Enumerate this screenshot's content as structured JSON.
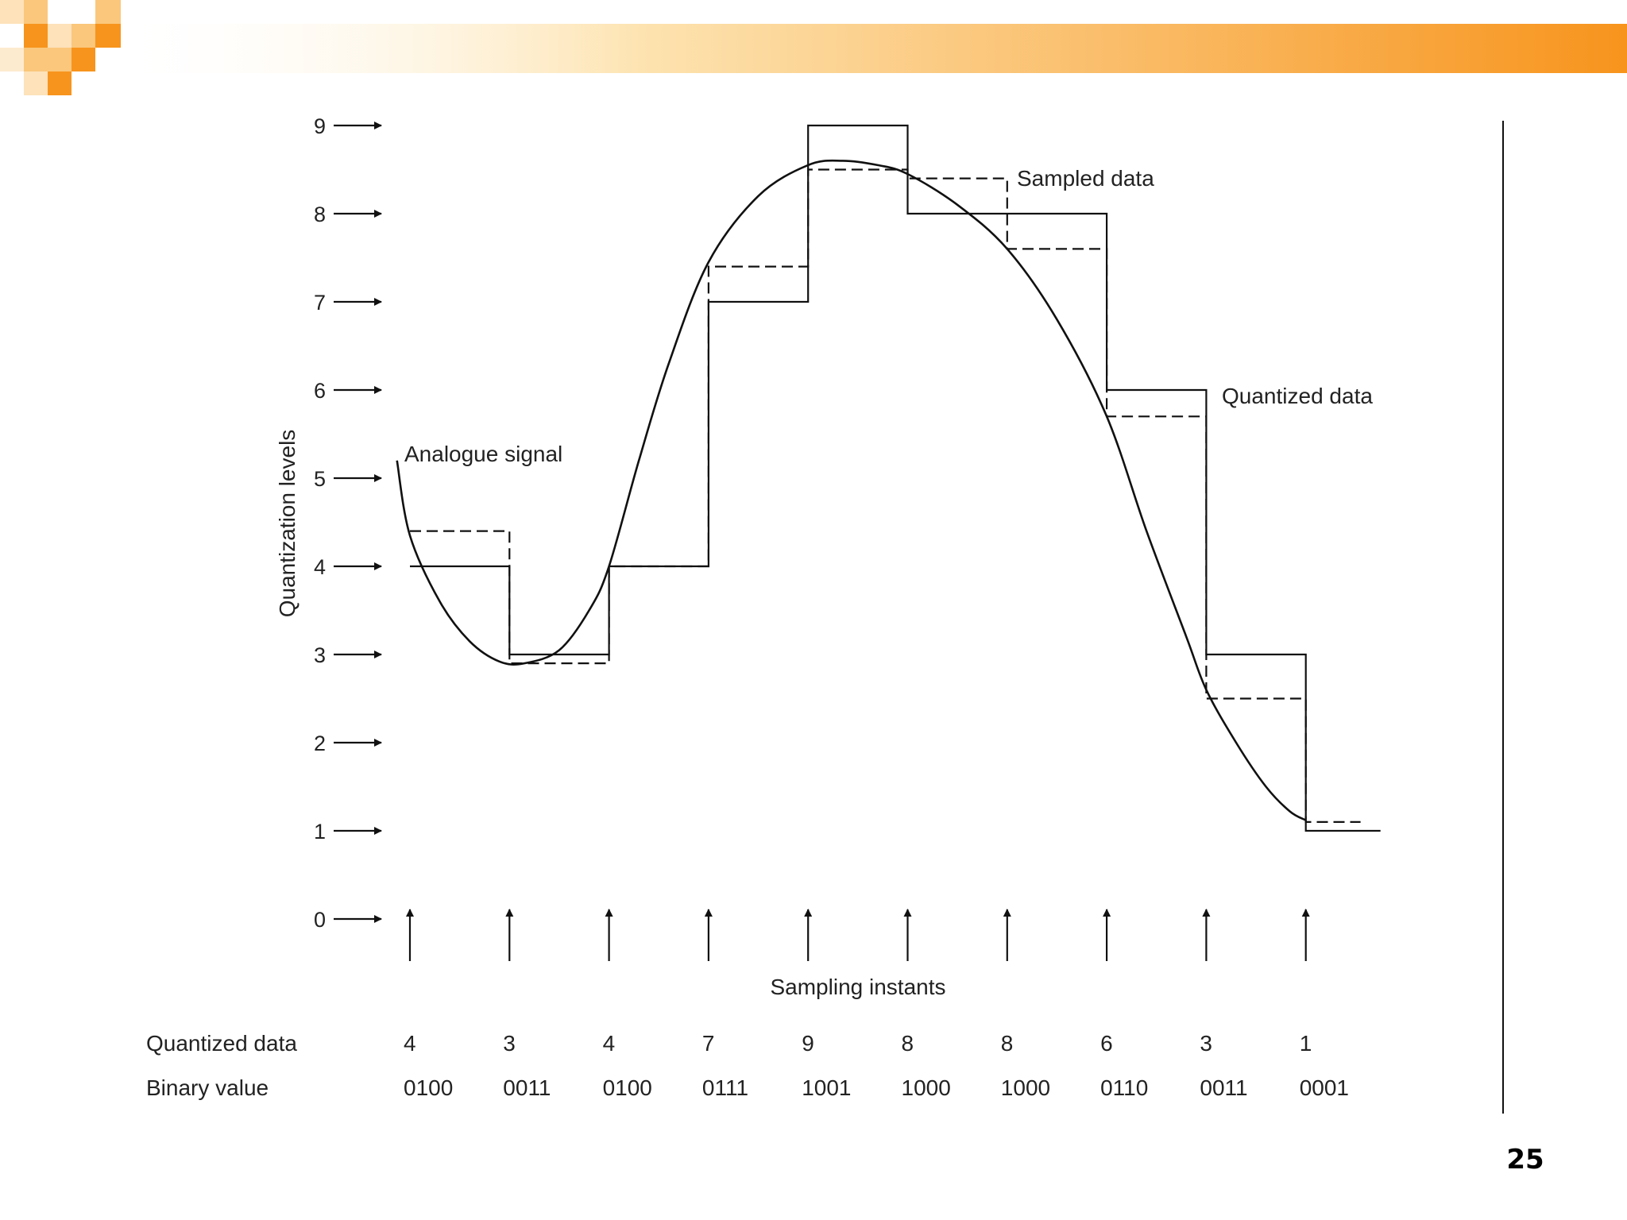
{
  "slide": {
    "page_number": "25",
    "accent_color": "#f7941d"
  },
  "chart_data": {
    "type": "line",
    "title": "",
    "ylabel": "Quantization levels",
    "xlabel": "Sampling instants",
    "ylim": [
      0,
      9
    ],
    "y_ticks": [
      "0",
      "1",
      "2",
      "3",
      "4",
      "5",
      "6",
      "7",
      "8",
      "9"
    ],
    "sampling_instants": [
      1,
      2,
      3,
      4,
      5,
      6,
      7,
      8,
      9,
      10
    ],
    "annotations": {
      "analogue": "Analogue signal",
      "sampled": "Sampled data",
      "quantized": "Quantized data"
    },
    "series": [
      {
        "name": "Analogue signal",
        "style": "solid-curve",
        "x": [
          0.87,
          1.0,
          1.3,
          1.6,
          1.9,
          2.15,
          2.5,
          2.8,
          3.0,
          3.3,
          3.6,
          4.0,
          4.5,
          5.0,
          5.35,
          5.7,
          6.0,
          6.5,
          7.0,
          7.5,
          8.0,
          8.4,
          8.8,
          9.0,
          9.3,
          9.6,
          9.84,
          10.0
        ],
        "y": [
          5.2,
          4.35,
          3.6,
          3.15,
          2.92,
          2.9,
          3.05,
          3.5,
          4.0,
          5.2,
          6.3,
          7.45,
          8.2,
          8.55,
          8.6,
          8.55,
          8.45,
          8.1,
          7.6,
          6.8,
          5.7,
          4.4,
          3.2,
          2.6,
          2.0,
          1.5,
          1.22,
          1.12
        ]
      },
      {
        "name": "Sampled data",
        "style": "dashed-step",
        "values": [
          4.4,
          2.9,
          4.0,
          7.4,
          8.5,
          8.4,
          7.6,
          5.7,
          2.5,
          1.1
        ],
        "end_x": 10.55
      },
      {
        "name": "Quantized data",
        "style": "solid-step",
        "values": [
          4,
          3,
          4,
          7,
          9,
          8,
          8,
          6,
          3,
          1
        ],
        "end_x": 10.75
      }
    ],
    "table": {
      "rows": [
        {
          "label": "Quantized data",
          "values": [
            "4",
            "3",
            "4",
            "7",
            "9",
            "8",
            "8",
            "6",
            "3",
            "1"
          ]
        },
        {
          "label": "Binary value",
          "values": [
            "0100",
            "0011",
            "0100",
            "0111",
            "1001",
            "1000",
            "1000",
            "0110",
            "0011",
            "0001"
          ]
        }
      ]
    }
  }
}
